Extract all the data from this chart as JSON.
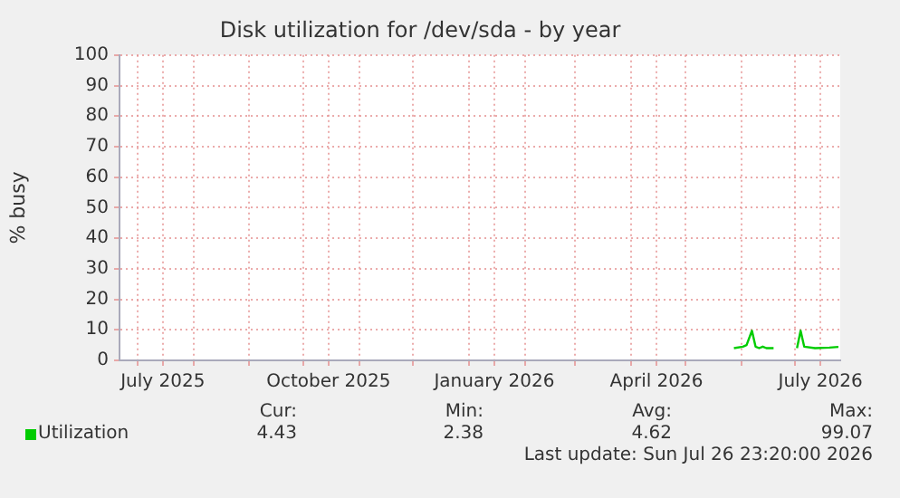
{
  "chart_data": {
    "type": "line",
    "title": "Disk utilization for /dev/sda - by year",
    "ylabel": "% busy",
    "x": [
      "2026-05-28",
      "2026-06-02",
      "2026-06-04",
      "2026-06-07",
      "2026-06-09",
      "2026-06-11",
      "2026-06-13",
      "2026-06-15",
      "2026-06-19",
      "2026-06-25",
      "2026-07-02",
      "2026-07-04",
      "2026-07-06",
      "2026-07-12",
      "2026-07-20",
      "2026-07-25"
    ],
    "series": [
      {
        "name": "Utilization",
        "color": "#00cc00",
        "values": [
          4,
          4.5,
          5,
          9.7,
          4.5,
          4,
          4.5,
          4,
          4,
          null,
          4,
          9.7,
          4.5,
          4,
          4.2,
          4.4
        ]
      }
    ],
    "xlim": [
      "2025-06-21",
      "2026-07-26"
    ],
    "xticks": [
      {
        "value": "2025-07-01",
        "label": null
      },
      {
        "value": "2025-07-15",
        "label": "July 2025"
      },
      {
        "value": "2025-08-01",
        "label": null
      },
      {
        "value": "2025-09-01",
        "label": null
      },
      {
        "value": "2025-10-01",
        "label": null
      },
      {
        "value": "2025-10-15",
        "label": "October 2025"
      },
      {
        "value": "2025-11-01",
        "label": null
      },
      {
        "value": "2025-12-01",
        "label": null
      },
      {
        "value": "2026-01-01",
        "label": null
      },
      {
        "value": "2026-01-15",
        "label": "January 2026"
      },
      {
        "value": "2026-02-01",
        "label": null
      },
      {
        "value": "2026-03-01",
        "label": null
      },
      {
        "value": "2026-04-01",
        "label": null
      },
      {
        "value": "2026-04-15",
        "label": "April 2026"
      },
      {
        "value": "2026-05-01",
        "label": null
      },
      {
        "value": "2026-06-01",
        "label": null
      },
      {
        "value": "2026-07-01",
        "label": null
      },
      {
        "value": "2026-07-15",
        "label": "July 2026"
      }
    ],
    "ylim": [
      0,
      100
    ],
    "yticks": [
      0,
      10,
      20,
      30,
      40,
      50,
      60,
      70,
      80,
      90,
      100
    ],
    "grid": true,
    "legend": "bottom left",
    "marker": "none",
    "line_style": "solid",
    "annotations": [
      "Cur:",
      "4.43",
      "Min:",
      "2.38",
      "Avg:",
      "4.62",
      "Max:",
      "99.07",
      "Last update: Sun Jul 26 23:20:00 2026"
    ]
  }
}
